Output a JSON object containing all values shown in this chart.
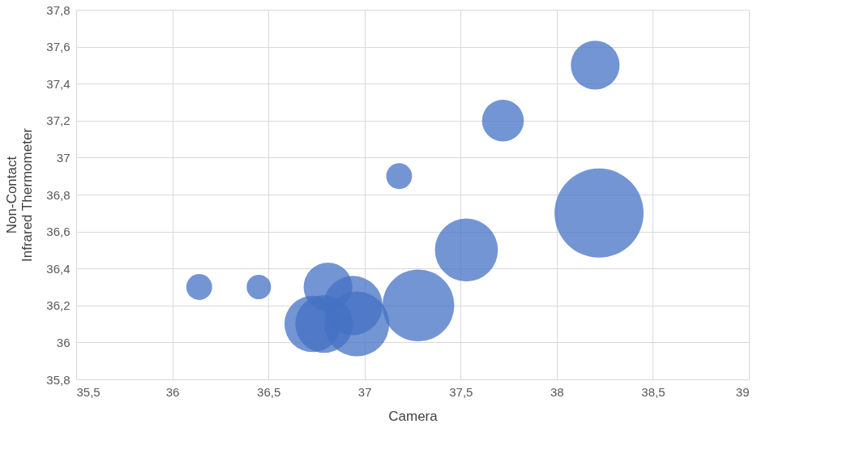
{
  "chart_data": {
    "type": "bubble",
    "xlabel": "Camera",
    "ylabel": "Non-Contact\nInfrared Thermometer",
    "x": [
      36.14,
      36.45,
      37.18,
      37.72,
      38.2,
      38.22,
      37.53,
      37.28,
      36.81,
      36.73,
      36.79,
      36.94,
      36.96
    ],
    "series": [
      {
        "color": "#4472c4",
        "values": [
          36.3,
          36.3,
          36.9,
          37.2,
          37.5,
          36.7,
          36.5,
          36.2,
          36.3,
          36.1,
          36.1,
          36.2,
          36.1
        ],
        "sizes": [
          0.084,
          0.075,
          0.084,
          0.22,
          0.3,
          1,
          0.5,
          0.65,
          0.3,
          0.4,
          0.42,
          0.44,
          0.53
        ]
      }
    ],
    "xlim": [
      35.5,
      39
    ],
    "ylim": [
      35.8,
      37.8
    ],
    "xticks": [
      {
        "value": 35.5,
        "label": "35,5"
      },
      36,
      {
        "value": 36.5,
        "label": "36,5"
      },
      37,
      {
        "value": 37.5,
        "label": "37,5"
      },
      38,
      {
        "value": 38.5,
        "label": "38,5"
      },
      39
    ],
    "yticks": [
      {
        "value": 35.8,
        "label": "35,8"
      },
      36,
      {
        "value": 36.2,
        "label": "36,2"
      },
      {
        "value": 36.4,
        "label": "36,4"
      },
      {
        "value": 36.6,
        "label": "36,6"
      },
      {
        "value": 36.8,
        "label": "36,8"
      },
      37,
      {
        "value": 37.2,
        "label": "37,2"
      },
      {
        "value": 37.4,
        "label": "37,4"
      },
      {
        "value": 37.6,
        "label": "37,6"
      },
      {
        "value": 37.8,
        "label": "37,8"
      }
    ],
    "grid": true,
    "legend": false
  }
}
